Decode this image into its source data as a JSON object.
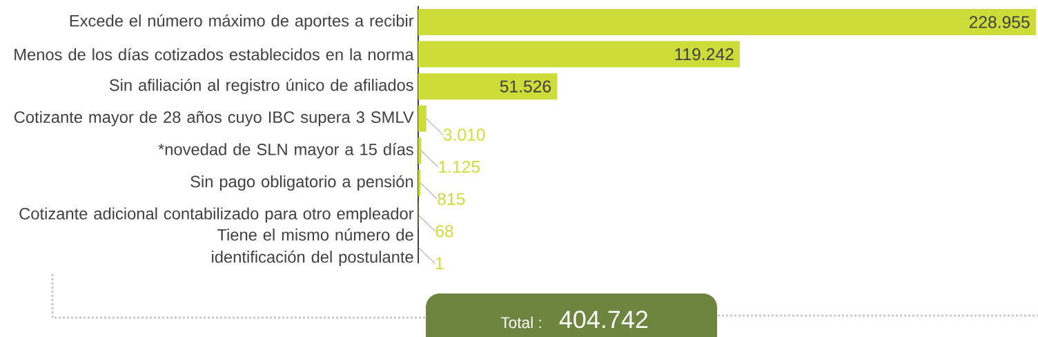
{
  "chart_data": {
    "type": "bar",
    "orientation": "horizontal",
    "categories": [
      "Excede el número máximo de aportes a recibir",
      "Menos de los días cotizados establecidos en la norma",
      "Sin afiliación al registro único de afiliados",
      "Cotizante mayor de 28 años cuyo IBC supera 3 SMLV",
      "*novedad de SLN mayor a 15 días",
      "Sin pago obligatorio a pensión",
      "Cotizante adicional contabilizado para otro empleador",
      "Tiene el mismo número de identificación del postulante"
    ],
    "values": [
      228955,
      119242,
      51526,
      3010,
      1125,
      815,
      68,
      1
    ],
    "value_labels": [
      "228.955",
      "119.242",
      "51.526",
      "3.010",
      "1.125",
      "815",
      "68",
      "1"
    ],
    "color": "#cddc39",
    "annotations": [
      "Total :",
      "404.742"
    ]
  }
}
